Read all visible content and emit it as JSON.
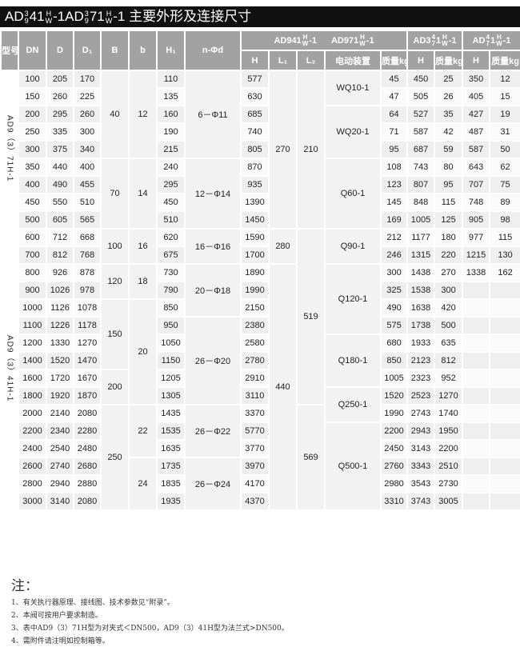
{
  "title": {
    "a": "AD",
    "s1": [
      "3",
      "9"
    ],
    "b": "41",
    "s2": [
      "H",
      "W"
    ],
    "c": "-1AD",
    "s3": [
      "3",
      "9"
    ],
    "d": "71",
    "s4": [
      "H",
      "W"
    ],
    "e": "-1 主要外形及连接尺寸"
  },
  "header": {
    "model": "型号",
    "dn": "DN",
    "d": "D",
    "d1": "D₁",
    "B": "B",
    "b": "b",
    "h1": "H₁",
    "nd": "n-Φd",
    "g1": {
      "a": "AD941",
      "s": [
        "H",
        "W"
      ],
      "b": "-1",
      "c": "AD971",
      "s2": [
        "H",
        "W"
      ],
      "d": "-1"
    },
    "g2": {
      "a": "AD3",
      "s": [
        "4",
        "7"
      ],
      "b": "1",
      "s2": [
        "H",
        "W"
      ],
      "c": "-1"
    },
    "g3": {
      "a": "AD",
      "s": [
        "4",
        "7"
      ],
      "b": "1",
      "s2": [
        "H",
        "W"
      ],
      "c": "-1"
    },
    "h": "H",
    "l1": "L₁",
    "l2": "L₂",
    "act": "电动装置",
    "kg": "质量kg"
  },
  "table": {
    "rows": [
      [
        "100",
        "205",
        "170",
        "110",
        "577",
        "45",
        "450",
        "25",
        "350",
        "12"
      ],
      [
        "150",
        "260",
        "225",
        "135",
        "630",
        "47",
        "505",
        "26",
        "405",
        "15"
      ],
      [
        "200",
        "295",
        "260",
        "160",
        "685",
        "64",
        "527",
        "35",
        "427",
        "19"
      ],
      [
        "250",
        "335",
        "300",
        "190",
        "740",
        "71",
        "587",
        "42",
        "487",
        "31"
      ],
      [
        "300",
        "375",
        "340",
        "215",
        "805",
        "95",
        "687",
        "59",
        "587",
        "50"
      ],
      [
        "350",
        "440",
        "400",
        "240",
        "870",
        "108",
        "743",
        "80",
        "643",
        "62"
      ],
      [
        "400",
        "490",
        "455",
        "295",
        "935",
        "123",
        "807",
        "95",
        "707",
        "75"
      ],
      [
        "450",
        "550",
        "510",
        "450",
        "1390",
        "145",
        "848",
        "115",
        "748",
        "89"
      ],
      [
        "500",
        "605",
        "565",
        "510",
        "1450",
        "169",
        "1005",
        "125",
        "905",
        "98"
      ],
      [
        "600",
        "712",
        "668",
        "620",
        "1590",
        "212",
        "1177",
        "180",
        "977",
        "115"
      ],
      [
        "700",
        "812",
        "768",
        "675",
        "1700",
        "246",
        "1315",
        "220",
        "1215",
        "130"
      ],
      [
        "800",
        "926",
        "878",
        "730",
        "1890",
        "300",
        "1438",
        "270",
        "1338",
        "162"
      ],
      [
        "900",
        "1026",
        "978",
        "790",
        "1990",
        "325",
        "1538",
        "300",
        "",
        ""
      ],
      [
        "1000",
        "1126",
        "1078",
        "850",
        "2150",
        "490",
        "1638",
        "420",
        "",
        ""
      ],
      [
        "1100",
        "1226",
        "1178",
        "950",
        "2380",
        "575",
        "1738",
        "500",
        "",
        ""
      ],
      [
        "1200",
        "1330",
        "1270",
        "1050",
        "2580",
        "680",
        "1933",
        "635",
        "",
        ""
      ],
      [
        "1400",
        "1520",
        "1470",
        "1150",
        "2780",
        "850",
        "2123",
        "812",
        "",
        ""
      ],
      [
        "1600",
        "1720",
        "1670",
        "1205",
        "2910",
        "1005",
        "2323",
        "952",
        "",
        ""
      ],
      [
        "1800",
        "1920",
        "1870",
        "1305",
        "3110",
        "1520",
        "2523",
        "1270",
        "",
        ""
      ],
      [
        "2000",
        "2140",
        "2080",
        "1435",
        "3370",
        "1990",
        "2743",
        "1740",
        "",
        ""
      ],
      [
        "2200",
        "2340",
        "2280",
        "1535",
        "5770",
        "2200",
        "2943",
        "1950",
        "",
        ""
      ],
      [
        "2400",
        "2540",
        "2480",
        "1635",
        "3770",
        "2450",
        "3143",
        "2200",
        "",
        ""
      ],
      [
        "2600",
        "2740",
        "2680",
        "1735",
        "3970",
        "2760",
        "3343",
        "2510",
        "",
        ""
      ],
      [
        "2800",
        "2940",
        "2880",
        "1835",
        "4170",
        "2980",
        "3543",
        "2730",
        "",
        ""
      ],
      [
        "3000",
        "3140",
        "2080",
        "1935",
        "4370",
        "3310",
        "3743",
        "3005",
        "",
        ""
      ]
    ],
    "groups": {
      "model": [
        {
          "v": "AD9（3）71H-1",
          "span": 9
        },
        {
          "v": "AD9（3）41H-1",
          "span": 16
        }
      ],
      "B": [
        {
          "v": "40",
          "span": 5
        },
        {
          "v": "70",
          "span": 4
        },
        {
          "v": "100",
          "span": 2
        },
        {
          "v": "120",
          "span": 2
        },
        {
          "v": "150",
          "span": 4
        },
        {
          "v": "200",
          "span": 2
        },
        {
          "v": "250",
          "span": 6
        }
      ],
      "b": [
        {
          "v": "12",
          "span": 5
        },
        {
          "v": "14",
          "span": 4
        },
        {
          "v": "16",
          "span": 2
        },
        {
          "v": "18",
          "span": 2
        },
        {
          "v": "20",
          "span": 6
        },
        {
          "v": "22",
          "span": 3
        },
        {
          "v": "24",
          "span": 3
        }
      ],
      "nd": [
        {
          "v": "6－Φ11",
          "span": 5
        },
        {
          "v": "12－Φ14",
          "span": 4
        },
        {
          "v": "16－Φ16",
          "span": 2
        },
        {
          "v": "20－Φ18",
          "span": 3
        },
        {
          "v": "26－Φ20",
          "span": 5
        },
        {
          "v": "26－Φ22",
          "span": 3
        },
        {
          "v": "26－Φ24",
          "span": 3
        }
      ],
      "L1": [
        {
          "v": "270",
          "span": 9
        },
        {
          "v": "280",
          "span": 2
        },
        {
          "v": "440",
          "span": 14
        }
      ],
      "L2": [
        {
          "v": "210",
          "span": 9
        },
        {
          "v": "519",
          "span": 10
        },
        {
          "v": "569",
          "span": 6
        }
      ],
      "act": [
        {
          "v": "WQ10-1",
          "span": 2
        },
        {
          "v": "WQ20-1",
          "span": 3
        },
        {
          "v": "Q60-1",
          "span": 4
        },
        {
          "v": "Q90-1",
          "span": 2
        },
        {
          "v": "Q120-1",
          "span": 4
        },
        {
          "v": "Q180-1",
          "span": 3
        },
        {
          "v": "Q250-1",
          "span": 2
        },
        {
          "v": "Q500-1",
          "span": 5
        }
      ]
    }
  },
  "notes": {
    "heading": "注：",
    "items": [
      "1、有关执行器原理、接线图、技术参数见“附录”。",
      "2、本阀可按用户要求制造。",
      "3、表中AD9（3）71H型为对夹式＜DN500，AD9（3）41H型为法兰式>DN500。",
      "4、需附件请注明如控制箱等。"
    ]
  }
}
